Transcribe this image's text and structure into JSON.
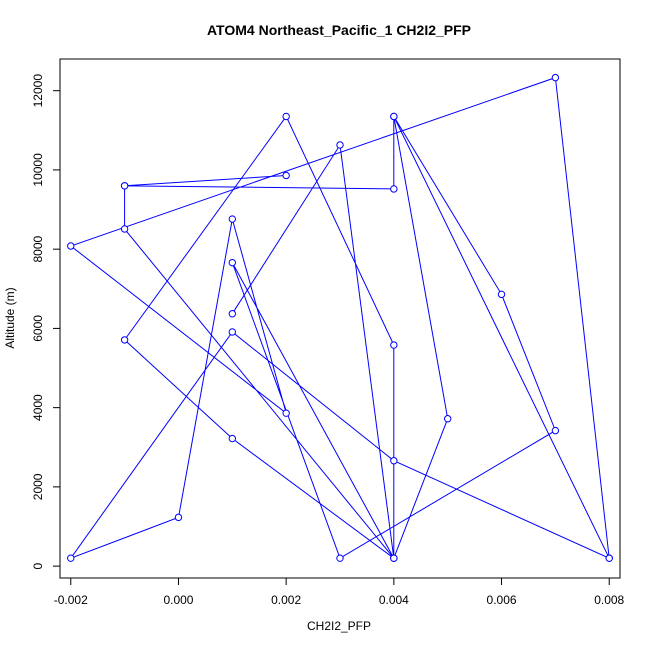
{
  "chart_data": {
    "type": "line",
    "title": "ATOM4 Northeast_Pacific_1 CH2I2_PFP",
    "xlabel": "CH2I2_PFP",
    "ylabel": "Altitude (m)",
    "xlim": [
      -0.0022,
      0.0082
    ],
    "ylim": [
      -300,
      12800
    ],
    "xticks": [
      -0.002,
      0.0,
      0.002,
      0.004,
      0.006,
      0.008
    ],
    "xtick_labels": [
      "-0.002",
      "0.000",
      "0.002",
      "0.004",
      "0.006",
      "0.008"
    ],
    "yticks": [
      0,
      2000,
      4000,
      6000,
      8000,
      10000,
      12000
    ],
    "ytick_labels": [
      "0",
      "2000",
      "4000",
      "6000",
      "8000",
      "10000",
      "12000"
    ],
    "grid": false,
    "series": [
      {
        "color": "#0000ff",
        "marker": "open-circle",
        "points": [
          {
            "x": 0.008,
            "y": 200
          },
          {
            "x": 0.007,
            "y": 12330
          },
          {
            "x": -0.002,
            "y": 8080
          },
          {
            "x": 0.002,
            "y": 3860
          },
          {
            "x": 0.001,
            "y": 8760
          },
          {
            "x": 0.0,
            "y": 1230
          },
          {
            "x": -0.002,
            "y": 200
          },
          {
            "x": 0.001,
            "y": 5910
          },
          {
            "x": 0.004,
            "y": 2660
          },
          {
            "x": 0.008,
            "y": 200
          },
          {
            "x": 0.004,
            "y": 11350
          },
          {
            "x": 0.005,
            "y": 3720
          },
          {
            "x": 0.004,
            "y": 200
          },
          {
            "x": 0.004,
            "y": 5580
          },
          {
            "x": 0.002,
            "y": 11350
          },
          {
            "x": -0.001,
            "y": 5710
          },
          {
            "x": 0.001,
            "y": 3220
          },
          {
            "x": 0.004,
            "y": 200
          },
          {
            "x": 0.001,
            "y": 7660
          },
          {
            "x": 0.003,
            "y": 200
          },
          {
            "x": 0.007,
            "y": 3420
          },
          {
            "x": 0.006,
            "y": 6860
          },
          {
            "x": 0.004,
            "y": 11350
          },
          {
            "x": 0.004,
            "y": 9520
          },
          {
            "x": -0.001,
            "y": 9600
          },
          {
            "x": 0.002,
            "y": 9860
          },
          {
            "x": -0.001,
            "y": 9600
          },
          {
            "x": -0.001,
            "y": 8510
          },
          {
            "x": 0.004,
            "y": 200
          },
          {
            "x": 0.003,
            "y": 10630
          },
          {
            "x": 0.001,
            "y": 6370
          }
        ]
      }
    ]
  }
}
